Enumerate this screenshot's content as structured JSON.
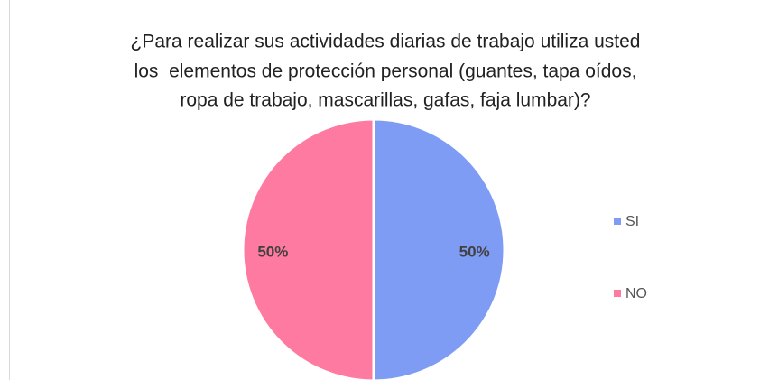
{
  "chart_data": {
    "type": "pie",
    "title": [
      "¿Para realizar sus actividades diarias de trabajo utiliza usted",
      "los  elementos de protección personal (guantes, tapa oídos,",
      "ropa de trabajo, mascarillas, gafas, faja lumbar)?"
    ],
    "categories": [
      "SI",
      "NO"
    ],
    "values": [
      50,
      50
    ],
    "value_labels": [
      "50%",
      "50%"
    ],
    "colors": [
      "#7f9cf5",
      "#ff7aa0"
    ],
    "legend": "right"
  }
}
